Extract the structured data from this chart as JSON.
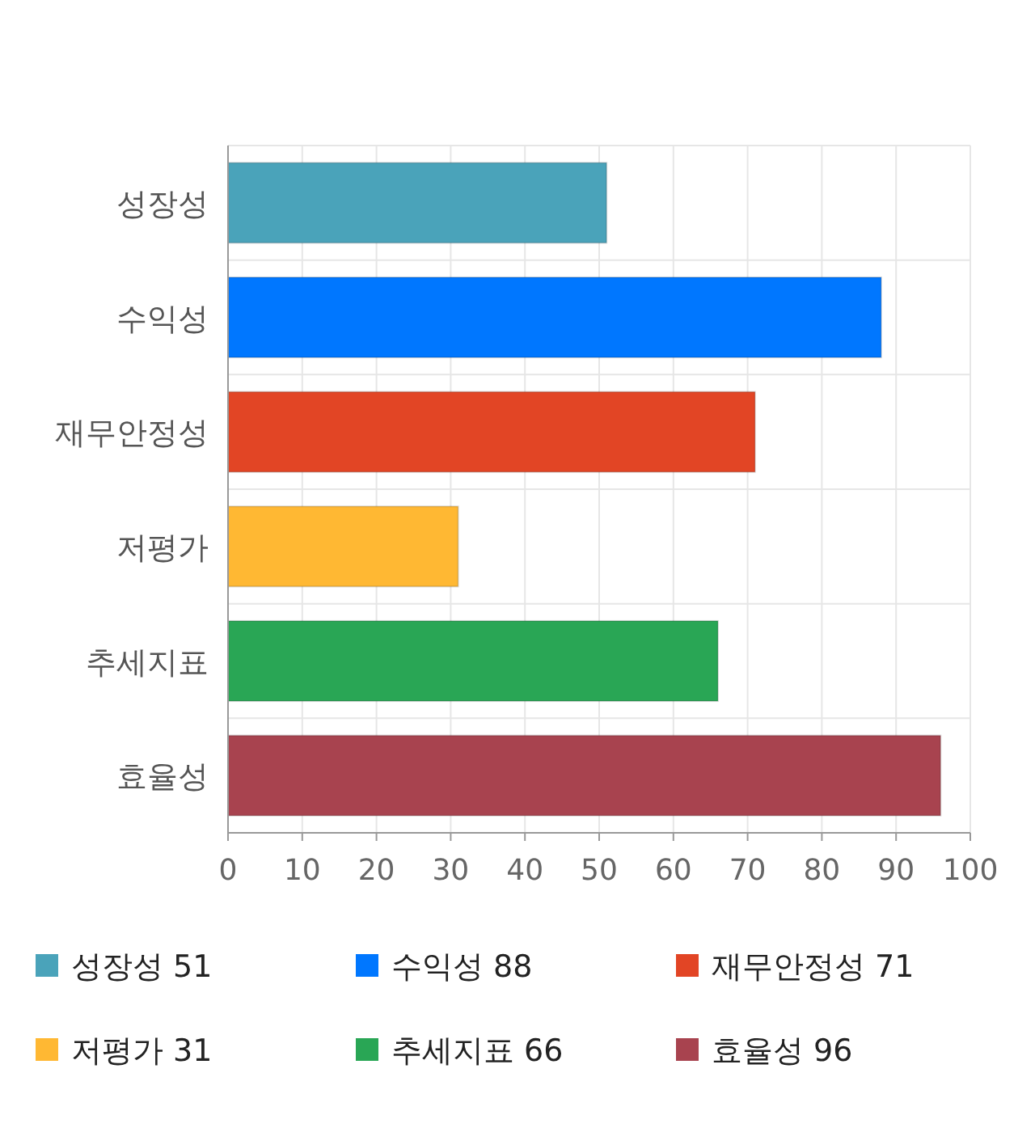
{
  "chart_data": {
    "type": "bar",
    "orientation": "horizontal",
    "stacked": true,
    "categories": [
      "성장성",
      "수익성",
      "재무안정성",
      "저평가",
      "추세지표",
      "효율성"
    ],
    "series": [
      {
        "name": "성장성 51",
        "color": "#4aa3ba",
        "values": [
          51,
          null,
          null,
          null,
          null,
          null
        ]
      },
      {
        "name": "수익성 88",
        "color": "#0077ff",
        "values": [
          null,
          88,
          null,
          null,
          null,
          null
        ]
      },
      {
        "name": "재무안정성 71",
        "color": "#e24525",
        "values": [
          null,
          null,
          71,
          null,
          null,
          null
        ]
      },
      {
        "name": "저평가 31",
        "color": "#ffb833",
        "values": [
          null,
          null,
          null,
          31,
          null,
          null
        ]
      },
      {
        "name": "추세지표 66",
        "color": "#29a655",
        "values": [
          null,
          null,
          null,
          null,
          66,
          null
        ]
      },
      {
        "name": "효율성 96",
        "color": "#a8434f",
        "values": [
          null,
          null,
          null,
          null,
          null,
          96
        ]
      }
    ],
    "xlim": [
      0,
      100
    ],
    "xticks": [
      0,
      10,
      20,
      30,
      40,
      50,
      60,
      70,
      80,
      90,
      100
    ],
    "grid": true,
    "legend": "bottom"
  }
}
